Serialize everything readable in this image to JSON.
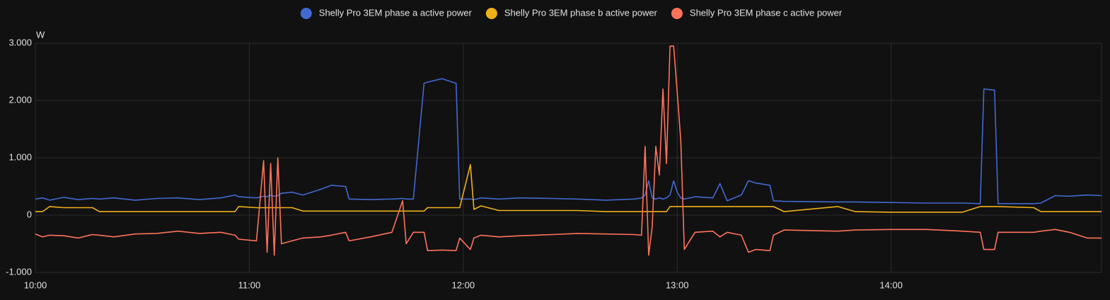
{
  "chart_data": {
    "type": "line",
    "y_label": "W",
    "x": [
      "10:00",
      "10:02",
      "10:04",
      "10:08",
      "10:12",
      "10:16",
      "10:18",
      "10:22",
      "10:28",
      "10:34",
      "10:40",
      "10:46",
      "10:52",
      "10:56",
      "10:57",
      "11:02",
      "11:04",
      "11:05",
      "11:06",
      "11:07",
      "11:08",
      "11:09",
      "11:12",
      "11:15",
      "11:20",
      "11:23",
      "11:27",
      "11:28",
      "11:34",
      "11:40",
      "11:43",
      "11:44",
      "11:46",
      "11:49",
      "11:50",
      "11:54",
      "11:58",
      "11:59",
      "12:02",
      "12:03",
      "12:05",
      "12:10",
      "12:16",
      "12:25",
      "12:32",
      "12:40",
      "12:48",
      "12:50",
      "12:51",
      "12:52",
      "12:53",
      "12:54",
      "12:55",
      "12:56",
      "12:57",
      "12:58",
      "12:59",
      "13:00",
      "13:01",
      "13:02",
      "13:05",
      "13:10",
      "13:12",
      "13:14",
      "13:18",
      "13:20",
      "13:22",
      "13:26",
      "13:27",
      "13:30",
      "13:45",
      "13:50",
      "14:00",
      "14:10",
      "14:20",
      "14:25",
      "14:26",
      "14:29",
      "14:30",
      "14:40",
      "14:42",
      "14:46",
      "14:50",
      "14:55",
      "14:59"
    ],
    "series": [
      {
        "name": "Shelly Pro 3EM phase a active power",
        "color": "#4269d0",
        "values": [
          280,
          300,
          260,
          310,
          270,
          290,
          280,
          300,
          260,
          290,
          300,
          270,
          300,
          350,
          320,
          300,
          330,
          320,
          350,
          330,
          340,
          380,
          400,
          350,
          450,
          520,
          500,
          280,
          270,
          280,
          290,
          280,
          280,
          2300,
          2320,
          2380,
          2300,
          280,
          280,
          270,
          300,
          280,
          300,
          290,
          280,
          260,
          280,
          300,
          350,
          600,
          300,
          280,
          300,
          280,
          300,
          350,
          600,
          400,
          300,
          280,
          320,
          300,
          550,
          250,
          350,
          600,
          560,
          520,
          250,
          240,
          230,
          230,
          220,
          210,
          210,
          200,
          2200,
          2180,
          200,
          200,
          210,
          340,
          330,
          350,
          340
        ]
      },
      {
        "name": "Shelly Pro 3EM phase b active power",
        "color": "#efb118",
        "values": [
          60,
          60,
          150,
          130,
          130,
          130,
          60,
          60,
          60,
          60,
          60,
          60,
          60,
          60,
          150,
          130,
          130,
          130,
          130,
          130,
          130,
          130,
          130,
          70,
          70,
          70,
          70,
          70,
          70,
          70,
          70,
          70,
          70,
          70,
          130,
          130,
          130,
          130,
          880,
          100,
          160,
          80,
          80,
          80,
          80,
          60,
          60,
          60,
          60,
          60,
          60,
          60,
          60,
          60,
          60,
          150,
          150,
          150,
          150,
          150,
          150,
          150,
          150,
          150,
          150,
          150,
          150,
          150,
          150,
          60,
          150,
          60,
          50,
          50,
          50,
          150,
          150,
          150,
          150,
          130,
          60,
          60,
          60,
          60,
          60
        ]
      },
      {
        "name": "Shelly Pro 3EM phase c active power",
        "color": "#ff725c",
        "values": [
          -330,
          -380,
          -350,
          -360,
          -400,
          -340,
          -350,
          -380,
          -330,
          -320,
          -280,
          -320,
          -300,
          -350,
          -420,
          -450,
          950,
          -650,
          900,
          -700,
          1000,
          -500,
          -450,
          -400,
          -380,
          -350,
          -300,
          -450,
          -380,
          -300,
          250,
          -500,
          -300,
          -300,
          -620,
          -610,
          -620,
          -400,
          -600,
          -400,
          -350,
          -380,
          -360,
          -340,
          -320,
          -330,
          -340,
          -350,
          1200,
          -700,
          -200,
          1200,
          700,
          2200,
          900,
          2950,
          2950,
          2150,
          1300,
          -600,
          -300,
          -280,
          -380,
          -300,
          -350,
          -650,
          -600,
          -620,
          -350,
          -260,
          -280,
          -260,
          -250,
          -250,
          -280,
          -300,
          -600,
          -600,
          -300,
          -300,
          -280,
          -250,
          -300,
          -400,
          -400
        ]
      }
    ],
    "xlim": [
      "10:00",
      "14:59"
    ],
    "xticks": [
      "10:00",
      "11:00",
      "12:00",
      "13:00",
      "14:00"
    ],
    "ylim": [
      -1000,
      3000
    ],
    "yticks": [
      {
        "value": 3000,
        "label": "3.000"
      },
      {
        "value": 2000,
        "label": "2.000"
      },
      {
        "value": 1000,
        "label": "1.000"
      },
      0,
      {
        "value": -1000,
        "label": "-1.000"
      }
    ],
    "grid": true
  }
}
